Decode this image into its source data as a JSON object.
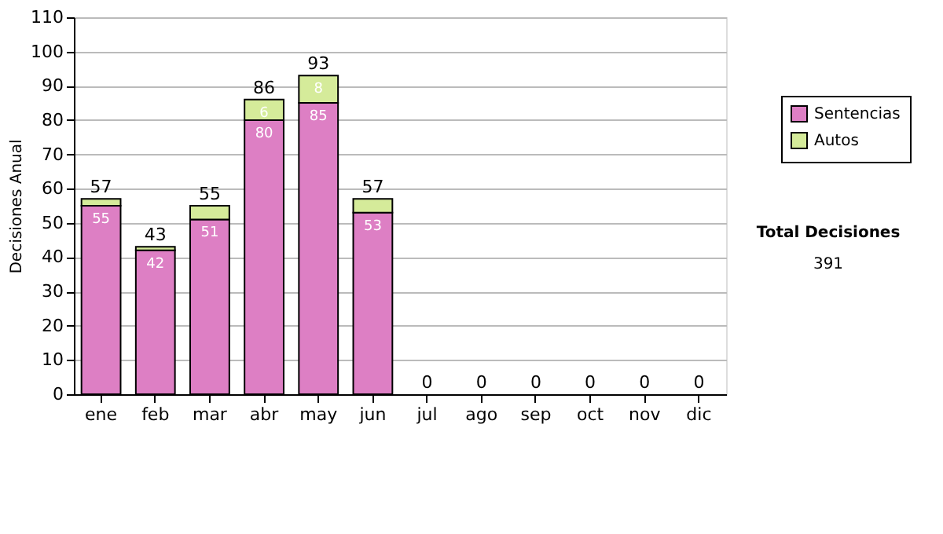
{
  "chart_data": {
    "type": "bar",
    "stacked": true,
    "ylabel": "Decisiones Anual",
    "categories": [
      "ene",
      "feb",
      "mar",
      "abr",
      "may",
      "jun",
      "jul",
      "ago",
      "sep",
      "oct",
      "nov",
      "dic"
    ],
    "series": [
      {
        "name": "Sentencias",
        "color": "#dd7fc4",
        "values": [
          55,
          42,
          51,
          80,
          85,
          53,
          0,
          0,
          0,
          0,
          0,
          0
        ],
        "value_labels": [
          "55",
          "42",
          "51",
          "80",
          "85",
          "53",
          null,
          null,
          null,
          null,
          null,
          null
        ]
      },
      {
        "name": "Autos",
        "color": "#d5eb9a",
        "values": [
          2,
          1,
          4,
          6,
          8,
          4,
          0,
          0,
          0,
          0,
          0,
          0
        ],
        "value_labels": [
          null,
          null,
          null,
          "6",
          "8",
          null,
          null,
          null,
          null,
          null,
          null,
          null
        ]
      }
    ],
    "totals": [
      "57",
      "43",
      "55",
      "86",
      "93",
      "57",
      "0",
      "0",
      "0",
      "0",
      "0",
      "0"
    ],
    "ylim": [
      0,
      110
    ],
    "yticks": [
      0,
      10,
      20,
      30,
      40,
      50,
      60,
      70,
      80,
      90,
      100,
      110
    ],
    "grid": "y",
    "legend": "top right",
    "annotations": [
      "Total Decisiones",
      "391"
    ]
  }
}
